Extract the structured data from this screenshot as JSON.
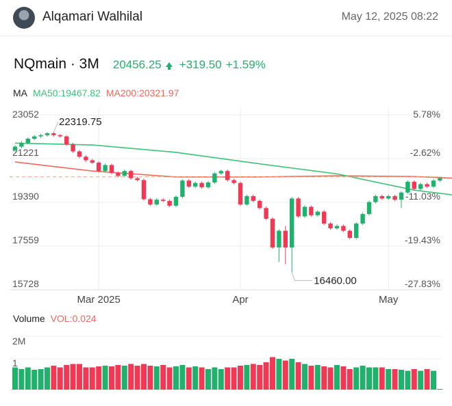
{
  "header": {
    "user_name": "Alqamari Walhilal",
    "timestamp": "May 12, 2025 08:22"
  },
  "ticker": {
    "symbol": "NQmain · 3M",
    "price": "20456.25",
    "change": "+319.50",
    "change_pct": "+1.59%"
  },
  "indicators": {
    "ma_label": "MA",
    "ma50": "MA50:19467.82",
    "ma200": "MA200:20321.97",
    "volume_label": "Volume",
    "volume_value": "VOL:0.024"
  },
  "colors": {
    "up": "#20b26c",
    "down": "#f03a55",
    "ma50": "#3cc37a",
    "ma200": "#f2665a",
    "grid": "#ececec"
  },
  "chart_data": [
    {
      "type": "candlestick",
      "y_axis_left_ticks": [
        "23052",
        "21221",
        "19390",
        "17559",
        "15728"
      ],
      "y_axis_right_ticks": [
        "5.78%",
        "-2.62%",
        "-11.03%",
        "-19.43%",
        "-27.83%"
      ],
      "ylim": [
        15728,
        23052
      ],
      "x_axis_ticks": [
        "Mar 2025",
        "Apr",
        "May"
      ],
      "annotations": {
        "high": "22319.75",
        "low": "16460.00"
      },
      "last_price": 20456.25,
      "candles": [
        [
          21570,
          21720,
          21480,
          21780
        ],
        [
          21720,
          21880,
          21650,
          21950
        ],
        [
          21880,
          22050,
          21820,
          22110
        ],
        [
          22050,
          22150,
          21990,
          22200
        ],
        [
          22150,
          22200,
          22080,
          22260
        ],
        [
          22200,
          22280,
          22140,
          22320
        ],
        [
          22280,
          22200,
          22130,
          22330
        ],
        [
          22200,
          22150,
          22090,
          22250
        ],
        [
          22150,
          21820,
          21760,
          22190
        ],
        [
          21820,
          21520,
          21460,
          21880
        ],
        [
          21520,
          21300,
          21240,
          21580
        ],
        [
          21300,
          21150,
          21080,
          21360
        ],
        [
          21150,
          21050,
          20990,
          21210
        ],
        [
          21050,
          20700,
          20640,
          21110
        ],
        [
          20700,
          20950,
          20640,
          21010
        ],
        [
          20950,
          20620,
          20560,
          21010
        ],
        [
          20620,
          20500,
          20440,
          20680
        ],
        [
          20500,
          20700,
          20440,
          20760
        ],
        [
          20700,
          20400,
          20340,
          20760
        ],
        [
          20400,
          20320,
          20260,
          20460
        ],
        [
          20320,
          19520,
          19460,
          20380
        ],
        [
          19520,
          19300,
          19240,
          19580
        ],
        [
          19300,
          19500,
          19240,
          19560
        ],
        [
          19500,
          19450,
          19390,
          19560
        ],
        [
          19450,
          19250,
          19190,
          19510
        ],
        [
          19250,
          19620,
          19190,
          19680
        ],
        [
          19620,
          20300,
          19560,
          20360
        ],
        [
          20300,
          20050,
          19990,
          20360
        ],
        [
          20050,
          20200,
          19990,
          20260
        ],
        [
          20200,
          20020,
          19960,
          20260
        ],
        [
          20020,
          20220,
          19960,
          20280
        ],
        [
          20220,
          20600,
          20160,
          20660
        ],
        [
          20600,
          20700,
          20540,
          20760
        ],
        [
          20700,
          20320,
          20260,
          20760
        ],
        [
          20320,
          20200,
          20140,
          20380
        ],
        [
          20200,
          19300,
          19240,
          20260
        ],
        [
          19300,
          19650,
          19240,
          19710
        ],
        [
          19650,
          19450,
          19390,
          19710
        ],
        [
          19450,
          19150,
          19090,
          19510
        ],
        [
          19150,
          18700,
          18640,
          19210
        ],
        [
          18700,
          17500,
          17440,
          18760
        ],
        [
          17500,
          18200,
          16900,
          18260
        ],
        [
          18200,
          17500,
          16800,
          18400
        ],
        [
          17500,
          19550,
          16460,
          19610
        ],
        [
          19550,
          18800,
          18740,
          19610
        ],
        [
          18800,
          19200,
          18740,
          19260
        ],
        [
          19200,
          18850,
          18790,
          19260
        ],
        [
          18850,
          19000,
          18790,
          19060
        ],
        [
          19000,
          18500,
          18440,
          19060
        ],
        [
          18500,
          18300,
          18240,
          18560
        ],
        [
          18300,
          18400,
          18240,
          18460
        ],
        [
          18400,
          18200,
          18140,
          18460
        ],
        [
          18200,
          17900,
          17840,
          18260
        ],
        [
          17900,
          18500,
          17840,
          18560
        ],
        [
          18500,
          18900,
          18440,
          18960
        ],
        [
          18900,
          19400,
          18840,
          19460
        ],
        [
          19400,
          19650,
          19340,
          19710
        ],
        [
          19650,
          19550,
          19490,
          19710
        ],
        [
          19550,
          19650,
          19490,
          19710
        ],
        [
          19650,
          19500,
          19440,
          19710
        ],
        [
          19500,
          19800,
          19150,
          19860
        ],
        [
          19800,
          20250,
          19740,
          20310
        ],
        [
          20250,
          19950,
          19890,
          20310
        ],
        [
          19950,
          20150,
          19890,
          20210
        ],
        [
          20150,
          20050,
          19990,
          20210
        ],
        [
          20050,
          20300,
          19990,
          20360
        ],
        [
          20300,
          20400,
          20240,
          20460
        ]
      ],
      "ma50": [
        [
          0,
          21870
        ],
        [
          12,
          21790
        ],
        [
          25,
          21480
        ],
        [
          38,
          21000
        ],
        [
          50,
          20580
        ],
        [
          62,
          19900
        ],
        [
          75,
          19467.82
        ]
      ],
      "ma200": [
        [
          0,
          21080
        ],
        [
          12,
          20700
        ],
        [
          25,
          20450
        ],
        [
          38,
          20450
        ],
        [
          50,
          20500
        ],
        [
          62,
          20470
        ],
        [
          75,
          20321.97
        ]
      ]
    },
    {
      "type": "bar",
      "y_axis_ticks": [
        "2M",
        "1"
      ],
      "values": [
        0.65,
        0.6,
        0.65,
        0.58,
        0.6,
        0.65,
        0.7,
        0.65,
        0.72,
        0.75,
        0.75,
        0.65,
        0.65,
        0.68,
        0.7,
        0.68,
        0.72,
        0.7,
        0.75,
        0.7,
        0.75,
        0.7,
        0.68,
        0.72,
        0.65,
        0.68,
        0.72,
        0.65,
        0.68,
        0.65,
        0.6,
        0.65,
        0.6,
        0.65,
        0.65,
        0.7,
        0.72,
        0.75,
        0.72,
        0.8,
        0.95,
        0.9,
        0.85,
        0.9,
        0.8,
        0.75,
        0.7,
        0.72,
        0.68,
        0.65,
        0.72,
        0.68,
        0.6,
        0.65,
        0.7,
        0.65,
        0.65,
        0.65,
        0.6,
        0.6,
        0.58,
        0.55,
        0.6,
        0.55,
        0.6,
        0.55,
        0.02
      ],
      "up": [
        true,
        true,
        true,
        true,
        true,
        true,
        false,
        false,
        false,
        false,
        false,
        false,
        false,
        false,
        true,
        false,
        false,
        true,
        false,
        false,
        false,
        false,
        true,
        false,
        false,
        true,
        true,
        false,
        true,
        false,
        true,
        true,
        true,
        false,
        false,
        false,
        true,
        false,
        false,
        false,
        false,
        true,
        false,
        true,
        false,
        true,
        false,
        true,
        false,
        false,
        true,
        false,
        false,
        true,
        true,
        true,
        true,
        false,
        true,
        false,
        true,
        true,
        false,
        true,
        false,
        true,
        true
      ]
    }
  ]
}
